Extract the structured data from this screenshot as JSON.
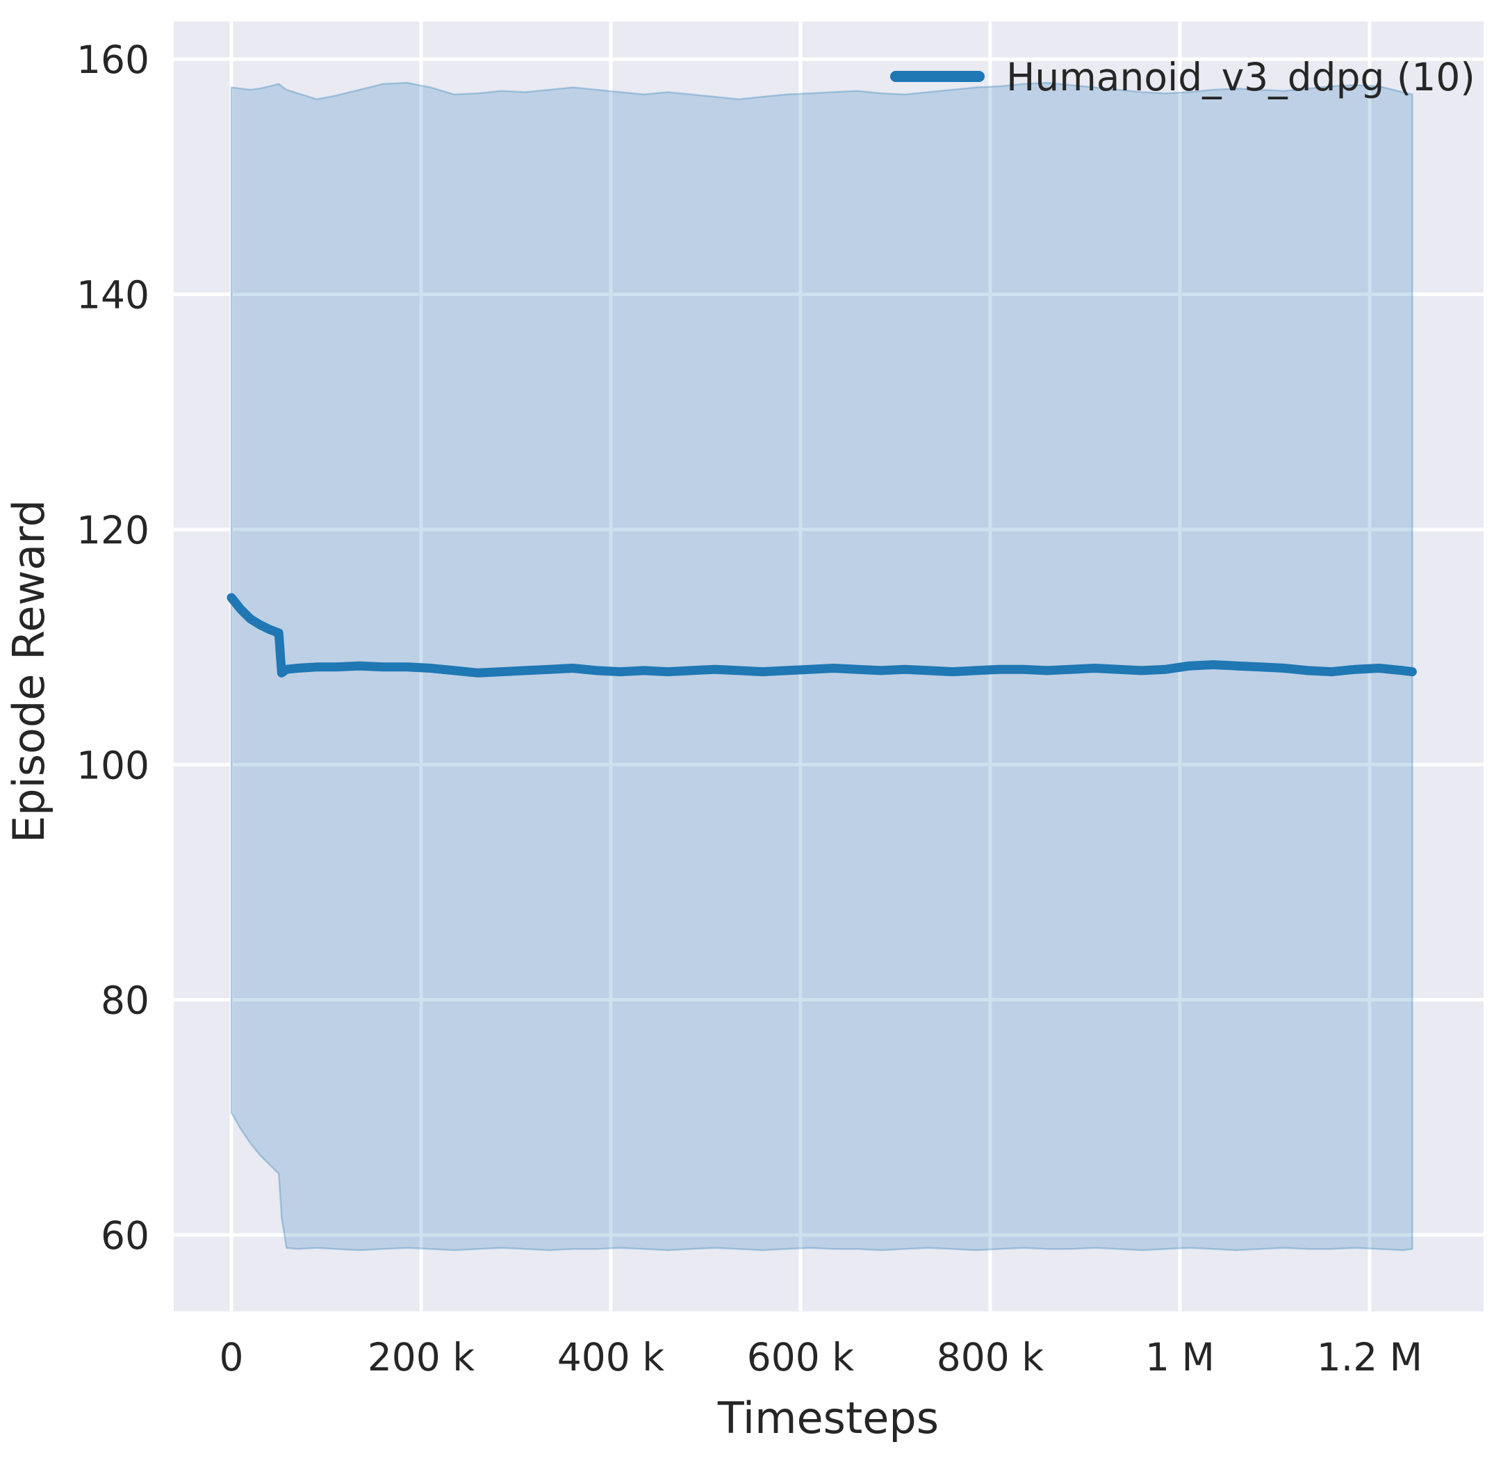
{
  "chart_data": {
    "type": "line",
    "title": "",
    "xlabel": "Timesteps",
    "ylabel": "Episode Reward",
    "grid": true,
    "xlim": [
      -60800,
      1320200
    ],
    "ylim": [
      53.5,
      163.2
    ],
    "x_ticks": [
      {
        "value": 0,
        "label": "0"
      },
      {
        "value": 200000,
        "label": "200 k"
      },
      {
        "value": 400000,
        "label": "400 k"
      },
      {
        "value": 600000,
        "label": "600 k"
      },
      {
        "value": 800000,
        "label": "800 k"
      },
      {
        "value": 1000000,
        "label": "1 M"
      },
      {
        "value": 1200000,
        "label": "1.2 M"
      }
    ],
    "y_ticks": [
      {
        "value": 60,
        "label": "60"
      },
      {
        "value": 80,
        "label": "80"
      },
      {
        "value": 100,
        "label": "100"
      },
      {
        "value": 120,
        "label": "120"
      },
      {
        "value": 140,
        "label": "140"
      },
      {
        "value": 160,
        "label": "160"
      }
    ],
    "legend": {
      "position": "upper right",
      "entries": [
        {
          "label": "Humanoid_v3_ddpg (10)",
          "color": "#1f77b4"
        }
      ]
    },
    "colors": {
      "line": "#1f77b4",
      "band_fill": "rgba(31,119,180,0.22)",
      "band_edge": "rgba(31,119,180,0.30)",
      "axes_bg": "#eaeaf2",
      "grid": "#ffffff",
      "text": "#262626"
    },
    "series": [
      {
        "name": "Humanoid_v3_ddpg (10)",
        "color": "#1f77b4",
        "x": [
          0,
          10000,
          20000,
          30000,
          40000,
          50000,
          53000,
          58000,
          70000,
          90000,
          110000,
          135000,
          160000,
          185000,
          210000,
          235000,
          260000,
          285000,
          310000,
          335000,
          360000,
          385000,
          410000,
          435000,
          460000,
          485000,
          510000,
          535000,
          560000,
          585000,
          610000,
          635000,
          660000,
          685000,
          710000,
          735000,
          760000,
          785000,
          810000,
          835000,
          860000,
          885000,
          910000,
          935000,
          960000,
          985000,
          1010000,
          1035000,
          1060000,
          1085000,
          1110000,
          1135000,
          1160000,
          1185000,
          1210000,
          1235000,
          1245000
        ],
        "mean": [
          114.2,
          113.2,
          112.4,
          111.9,
          111.5,
          111.2,
          107.8,
          108.1,
          108.2,
          108.3,
          108.3,
          108.4,
          108.3,
          108.3,
          108.2,
          108.0,
          107.8,
          107.9,
          108.0,
          108.1,
          108.2,
          108.0,
          107.9,
          108.0,
          107.9,
          108.0,
          108.1,
          108.0,
          107.9,
          108.0,
          108.1,
          108.2,
          108.1,
          108.0,
          108.1,
          108.0,
          107.9,
          108.0,
          108.1,
          108.1,
          108.0,
          108.1,
          108.2,
          108.1,
          108.0,
          108.1,
          108.4,
          108.5,
          108.4,
          108.3,
          108.2,
          108.0,
          107.9,
          108.1,
          108.2,
          108.0,
          107.9
        ],
        "band_upper": [
          157.6,
          157.5,
          157.4,
          157.5,
          157.7,
          157.9,
          157.7,
          157.4,
          157.1,
          156.6,
          156.9,
          157.4,
          157.9,
          158.0,
          157.6,
          157.0,
          157.1,
          157.3,
          157.2,
          157.4,
          157.6,
          157.4,
          157.2,
          157.0,
          157.2,
          157.0,
          156.8,
          156.6,
          156.8,
          157.0,
          157.1,
          157.2,
          157.3,
          157.1,
          157.0,
          157.2,
          157.4,
          157.6,
          157.7,
          157.9,
          158.0,
          157.8,
          157.6,
          157.4,
          157.2,
          157.1,
          157.2,
          157.4,
          157.5,
          157.4,
          157.3,
          157.5,
          157.7,
          157.8,
          157.7,
          157.2,
          157.0
        ],
        "band_lower": [
          70.4,
          69.0,
          67.8,
          66.8,
          66.0,
          65.2,
          61.5,
          58.9,
          58.8,
          58.9,
          58.8,
          58.7,
          58.8,
          58.9,
          58.8,
          58.7,
          58.8,
          58.9,
          58.8,
          58.7,
          58.8,
          58.8,
          58.9,
          58.8,
          58.7,
          58.8,
          58.9,
          58.8,
          58.7,
          58.8,
          58.9,
          58.8,
          58.8,
          58.7,
          58.8,
          58.9,
          58.8,
          58.7,
          58.8,
          58.9,
          58.8,
          58.8,
          58.9,
          58.8,
          58.7,
          58.8,
          58.9,
          58.8,
          58.7,
          58.8,
          58.9,
          58.8,
          58.8,
          58.9,
          58.8,
          58.7,
          58.8
        ]
      }
    ]
  }
}
